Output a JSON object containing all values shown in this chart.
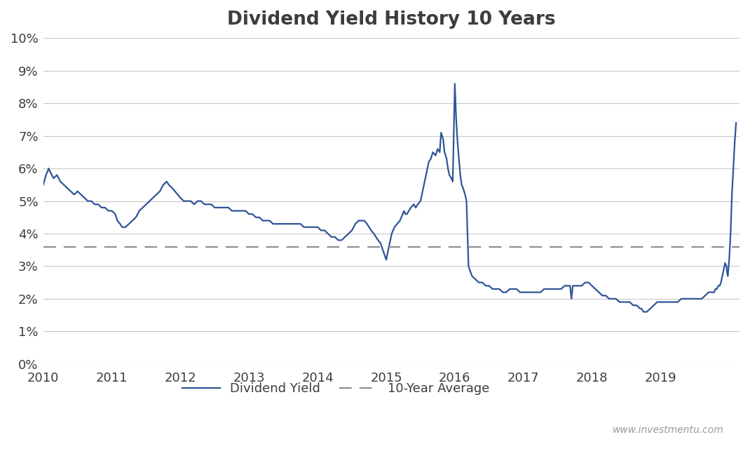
{
  "title": "Dividend Yield History 10 Years",
  "title_fontsize": 19,
  "title_fontweight": "bold",
  "title_color": "#3d3d3d",
  "line_color": "#2e5597",
  "avg_color": "#909090",
  "avg_value": 0.036,
  "avg_label": "10-Year Average",
  "yield_label": "Dividend Yield",
  "watermark": "www.investmentu.com",
  "background_color": "#ffffff",
  "grid_color": "#c8c8c8",
  "ylim": [
    0.0,
    0.1
  ],
  "ytick_step": 0.01,
  "figsize": [
    10.7,
    6.4
  ],
  "dpi": 100,
  "segments": [
    {
      "t": 2010.0,
      "v": 0.055
    },
    {
      "t": 2010.04,
      "v": 0.058
    },
    {
      "t": 2010.08,
      "v": 0.06
    },
    {
      "t": 2010.1,
      "v": 0.059
    },
    {
      "t": 2010.15,
      "v": 0.057
    },
    {
      "t": 2010.2,
      "v": 0.058
    },
    {
      "t": 2010.25,
      "v": 0.056
    },
    {
      "t": 2010.3,
      "v": 0.055
    },
    {
      "t": 2010.35,
      "v": 0.054
    },
    {
      "t": 2010.4,
      "v": 0.053
    },
    {
      "t": 2010.45,
      "v": 0.052
    },
    {
      "t": 2010.5,
      "v": 0.053
    },
    {
      "t": 2010.55,
      "v": 0.052
    },
    {
      "t": 2010.6,
      "v": 0.051
    },
    {
      "t": 2010.65,
      "v": 0.05
    },
    {
      "t": 2010.7,
      "v": 0.05
    },
    {
      "t": 2010.75,
      "v": 0.049
    },
    {
      "t": 2010.8,
      "v": 0.049
    },
    {
      "t": 2010.85,
      "v": 0.048
    },
    {
      "t": 2010.9,
      "v": 0.048
    },
    {
      "t": 2010.95,
      "v": 0.047
    },
    {
      "t": 2011.0,
      "v": 0.047
    },
    {
      "t": 2011.05,
      "v": 0.046
    },
    {
      "t": 2011.08,
      "v": 0.044
    },
    {
      "t": 2011.12,
      "v": 0.043
    },
    {
      "t": 2011.15,
      "v": 0.042
    },
    {
      "t": 2011.2,
      "v": 0.042
    },
    {
      "t": 2011.25,
      "v": 0.043
    },
    {
      "t": 2011.3,
      "v": 0.044
    },
    {
      "t": 2011.35,
      "v": 0.045
    },
    {
      "t": 2011.4,
      "v": 0.047
    },
    {
      "t": 2011.45,
      "v": 0.048
    },
    {
      "t": 2011.5,
      "v": 0.049
    },
    {
      "t": 2011.55,
      "v": 0.05
    },
    {
      "t": 2011.6,
      "v": 0.051
    },
    {
      "t": 2011.65,
      "v": 0.052
    },
    {
      "t": 2011.7,
      "v": 0.053
    },
    {
      "t": 2011.75,
      "v": 0.055
    },
    {
      "t": 2011.8,
      "v": 0.056
    },
    {
      "t": 2011.83,
      "v": 0.055
    },
    {
      "t": 2011.88,
      "v": 0.054
    },
    {
      "t": 2011.92,
      "v": 0.053
    },
    {
      "t": 2011.96,
      "v": 0.052
    },
    {
      "t": 2012.0,
      "v": 0.051
    },
    {
      "t": 2012.05,
      "v": 0.05
    },
    {
      "t": 2012.1,
      "v": 0.05
    },
    {
      "t": 2012.15,
      "v": 0.05
    },
    {
      "t": 2012.2,
      "v": 0.049
    },
    {
      "t": 2012.25,
      "v": 0.05
    },
    {
      "t": 2012.3,
      "v": 0.05
    },
    {
      "t": 2012.35,
      "v": 0.049
    },
    {
      "t": 2012.4,
      "v": 0.049
    },
    {
      "t": 2012.45,
      "v": 0.049
    },
    {
      "t": 2012.5,
      "v": 0.048
    },
    {
      "t": 2012.55,
      "v": 0.048
    },
    {
      "t": 2012.6,
      "v": 0.048
    },
    {
      "t": 2012.65,
      "v": 0.048
    },
    {
      "t": 2012.7,
      "v": 0.048
    },
    {
      "t": 2012.75,
      "v": 0.047
    },
    {
      "t": 2012.8,
      "v": 0.047
    },
    {
      "t": 2012.85,
      "v": 0.047
    },
    {
      "t": 2012.9,
      "v": 0.047
    },
    {
      "t": 2012.95,
      "v": 0.047
    },
    {
      "t": 2013.0,
      "v": 0.046
    },
    {
      "t": 2013.05,
      "v": 0.046
    },
    {
      "t": 2013.1,
      "v": 0.045
    },
    {
      "t": 2013.15,
      "v": 0.045
    },
    {
      "t": 2013.2,
      "v": 0.044
    },
    {
      "t": 2013.25,
      "v": 0.044
    },
    {
      "t": 2013.3,
      "v": 0.044
    },
    {
      "t": 2013.35,
      "v": 0.043
    },
    {
      "t": 2013.4,
      "v": 0.043
    },
    {
      "t": 2013.45,
      "v": 0.043
    },
    {
      "t": 2013.5,
      "v": 0.043
    },
    {
      "t": 2013.55,
      "v": 0.043
    },
    {
      "t": 2013.6,
      "v": 0.043
    },
    {
      "t": 2013.65,
      "v": 0.043
    },
    {
      "t": 2013.7,
      "v": 0.043
    },
    {
      "t": 2013.75,
      "v": 0.043
    },
    {
      "t": 2013.8,
      "v": 0.042
    },
    {
      "t": 2013.85,
      "v": 0.042
    },
    {
      "t": 2013.9,
      "v": 0.042
    },
    {
      "t": 2013.95,
      "v": 0.042
    },
    {
      "t": 2014.0,
      "v": 0.042
    },
    {
      "t": 2014.05,
      "v": 0.041
    },
    {
      "t": 2014.1,
      "v": 0.041
    },
    {
      "t": 2014.15,
      "v": 0.04
    },
    {
      "t": 2014.2,
      "v": 0.039
    },
    {
      "t": 2014.25,
      "v": 0.039
    },
    {
      "t": 2014.3,
      "v": 0.038
    },
    {
      "t": 2014.35,
      "v": 0.038
    },
    {
      "t": 2014.4,
      "v": 0.039
    },
    {
      "t": 2014.45,
      "v": 0.04
    },
    {
      "t": 2014.5,
      "v": 0.041
    },
    {
      "t": 2014.55,
      "v": 0.043
    },
    {
      "t": 2014.6,
      "v": 0.044
    },
    {
      "t": 2014.65,
      "v": 0.044
    },
    {
      "t": 2014.68,
      "v": 0.044
    },
    {
      "t": 2014.72,
      "v": 0.043
    },
    {
      "t": 2014.75,
      "v": 0.042
    },
    {
      "t": 2014.78,
      "v": 0.041
    },
    {
      "t": 2014.82,
      "v": 0.04
    },
    {
      "t": 2014.85,
      "v": 0.039
    },
    {
      "t": 2014.88,
      "v": 0.038
    },
    {
      "t": 2014.92,
      "v": 0.037
    },
    {
      "t": 2014.95,
      "v": 0.035
    },
    {
      "t": 2015.0,
      "v": 0.032
    },
    {
      "t": 2015.04,
      "v": 0.036
    },
    {
      "t": 2015.08,
      "v": 0.04
    },
    {
      "t": 2015.12,
      "v": 0.042
    },
    {
      "t": 2015.16,
      "v": 0.043
    },
    {
      "t": 2015.2,
      "v": 0.044
    },
    {
      "t": 2015.22,
      "v": 0.045
    },
    {
      "t": 2015.24,
      "v": 0.046
    },
    {
      "t": 2015.26,
      "v": 0.047
    },
    {
      "t": 2015.28,
      "v": 0.046
    },
    {
      "t": 2015.3,
      "v": 0.046
    },
    {
      "t": 2015.33,
      "v": 0.047
    },
    {
      "t": 2015.36,
      "v": 0.048
    },
    {
      "t": 2015.4,
      "v": 0.049
    },
    {
      "t": 2015.43,
      "v": 0.048
    },
    {
      "t": 2015.46,
      "v": 0.049
    },
    {
      "t": 2015.5,
      "v": 0.05
    },
    {
      "t": 2015.52,
      "v": 0.052
    },
    {
      "t": 2015.55,
      "v": 0.055
    },
    {
      "t": 2015.58,
      "v": 0.058
    },
    {
      "t": 2015.62,
      "v": 0.062
    },
    {
      "t": 2015.65,
      "v": 0.063
    },
    {
      "t": 2015.68,
      "v": 0.065
    },
    {
      "t": 2015.72,
      "v": 0.064
    },
    {
      "t": 2015.75,
      "v": 0.066
    },
    {
      "t": 2015.78,
      "v": 0.065
    },
    {
      "t": 2015.8,
      "v": 0.071
    },
    {
      "t": 2015.83,
      "v": 0.069
    },
    {
      "t": 2015.85,
      "v": 0.065
    },
    {
      "t": 2015.88,
      "v": 0.063
    },
    {
      "t": 2015.9,
      "v": 0.06
    },
    {
      "t": 2015.92,
      "v": 0.058
    },
    {
      "t": 2015.95,
      "v": 0.057
    },
    {
      "t": 2015.97,
      "v": 0.056
    },
    {
      "t": 2016.0,
      "v": 0.086
    },
    {
      "t": 2016.02,
      "v": 0.075
    },
    {
      "t": 2016.04,
      "v": 0.068
    },
    {
      "t": 2016.06,
      "v": 0.063
    },
    {
      "t": 2016.08,
      "v": 0.058
    },
    {
      "t": 2016.1,
      "v": 0.055
    },
    {
      "t": 2016.12,
      "v": 0.054
    },
    {
      "t": 2016.15,
      "v": 0.052
    },
    {
      "t": 2016.17,
      "v": 0.05
    },
    {
      "t": 2016.2,
      "v": 0.03
    },
    {
      "t": 2016.25,
      "v": 0.027
    },
    {
      "t": 2016.3,
      "v": 0.026
    },
    {
      "t": 2016.35,
      "v": 0.025
    },
    {
      "t": 2016.4,
      "v": 0.025
    },
    {
      "t": 2016.45,
      "v": 0.024
    },
    {
      "t": 2016.5,
      "v": 0.024
    },
    {
      "t": 2016.55,
      "v": 0.023
    },
    {
      "t": 2016.6,
      "v": 0.023
    },
    {
      "t": 2016.65,
      "v": 0.023
    },
    {
      "t": 2016.7,
      "v": 0.022
    },
    {
      "t": 2016.75,
      "v": 0.022
    },
    {
      "t": 2016.8,
      "v": 0.023
    },
    {
      "t": 2016.85,
      "v": 0.023
    },
    {
      "t": 2016.9,
      "v": 0.023
    },
    {
      "t": 2016.95,
      "v": 0.022
    },
    {
      "t": 2017.0,
      "v": 0.022
    },
    {
      "t": 2017.05,
      "v": 0.022
    },
    {
      "t": 2017.1,
      "v": 0.022
    },
    {
      "t": 2017.15,
      "v": 0.022
    },
    {
      "t": 2017.2,
      "v": 0.022
    },
    {
      "t": 2017.25,
      "v": 0.022
    },
    {
      "t": 2017.3,
      "v": 0.023
    },
    {
      "t": 2017.35,
      "v": 0.023
    },
    {
      "t": 2017.4,
      "v": 0.023
    },
    {
      "t": 2017.45,
      "v": 0.023
    },
    {
      "t": 2017.5,
      "v": 0.023
    },
    {
      "t": 2017.55,
      "v": 0.023
    },
    {
      "t": 2017.6,
      "v": 0.024
    },
    {
      "t": 2017.65,
      "v": 0.024
    },
    {
      "t": 2017.68,
      "v": 0.024
    },
    {
      "t": 2017.7,
      "v": 0.02
    },
    {
      "t": 2017.72,
      "v": 0.024
    },
    {
      "t": 2017.75,
      "v": 0.024
    },
    {
      "t": 2017.8,
      "v": 0.024
    },
    {
      "t": 2017.85,
      "v": 0.024
    },
    {
      "t": 2017.9,
      "v": 0.025
    },
    {
      "t": 2017.95,
      "v": 0.025
    },
    {
      "t": 2018.0,
      "v": 0.024
    },
    {
      "t": 2018.05,
      "v": 0.023
    },
    {
      "t": 2018.1,
      "v": 0.022
    },
    {
      "t": 2018.15,
      "v": 0.021
    },
    {
      "t": 2018.2,
      "v": 0.021
    },
    {
      "t": 2018.25,
      "v": 0.02
    },
    {
      "t": 2018.3,
      "v": 0.02
    },
    {
      "t": 2018.35,
      "v": 0.02
    },
    {
      "t": 2018.4,
      "v": 0.019
    },
    {
      "t": 2018.45,
      "v": 0.019
    },
    {
      "t": 2018.5,
      "v": 0.019
    },
    {
      "t": 2018.55,
      "v": 0.019
    },
    {
      "t": 2018.6,
      "v": 0.018
    },
    {
      "t": 2018.65,
      "v": 0.018
    },
    {
      "t": 2018.7,
      "v": 0.017
    },
    {
      "t": 2018.72,
      "v": 0.017
    },
    {
      "t": 2018.75,
      "v": 0.016
    },
    {
      "t": 2018.8,
      "v": 0.016
    },
    {
      "t": 2018.85,
      "v": 0.017
    },
    {
      "t": 2018.9,
      "v": 0.018
    },
    {
      "t": 2018.95,
      "v": 0.019
    },
    {
      "t": 2019.0,
      "v": 0.019
    },
    {
      "t": 2019.05,
      "v": 0.019
    },
    {
      "t": 2019.1,
      "v": 0.019
    },
    {
      "t": 2019.15,
      "v": 0.019
    },
    {
      "t": 2019.2,
      "v": 0.019
    },
    {
      "t": 2019.25,
      "v": 0.019
    },
    {
      "t": 2019.3,
      "v": 0.02
    },
    {
      "t": 2019.35,
      "v": 0.02
    },
    {
      "t": 2019.4,
      "v": 0.02
    },
    {
      "t": 2019.45,
      "v": 0.02
    },
    {
      "t": 2019.5,
      "v": 0.02
    },
    {
      "t": 2019.55,
      "v": 0.02
    },
    {
      "t": 2019.6,
      "v": 0.02
    },
    {
      "t": 2019.65,
      "v": 0.021
    },
    {
      "t": 2019.7,
      "v": 0.022
    },
    {
      "t": 2019.72,
      "v": 0.022
    },
    {
      "t": 2019.75,
      "v": 0.022
    },
    {
      "t": 2019.78,
      "v": 0.022
    },
    {
      "t": 2019.8,
      "v": 0.023
    },
    {
      "t": 2019.82,
      "v": 0.023
    },
    {
      "t": 2019.84,
      "v": 0.024
    },
    {
      "t": 2019.86,
      "v": 0.024
    },
    {
      "t": 2019.88,
      "v": 0.025
    },
    {
      "t": 2019.9,
      "v": 0.027
    },
    {
      "t": 2019.92,
      "v": 0.029
    },
    {
      "t": 2019.94,
      "v": 0.031
    },
    {
      "t": 2019.96,
      "v": 0.03
    },
    {
      "t": 2019.97,
      "v": 0.028
    },
    {
      "t": 2019.98,
      "v": 0.027
    },
    {
      "t": 2020.0,
      "v": 0.032
    },
    {
      "t": 2020.02,
      "v": 0.04
    },
    {
      "t": 2020.04,
      "v": 0.052
    },
    {
      "t": 2020.06,
      "v": 0.06
    },
    {
      "t": 2020.08,
      "v": 0.068
    },
    {
      "t": 2020.1,
      "v": 0.074
    }
  ]
}
